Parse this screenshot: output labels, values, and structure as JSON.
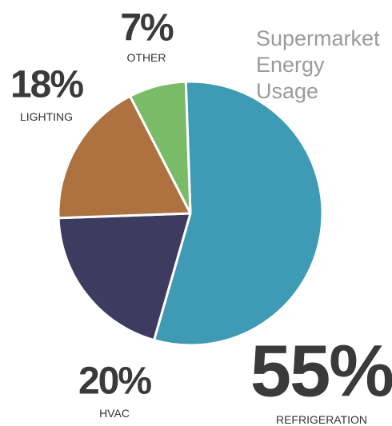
{
  "chart_data": {
    "type": "pie",
    "title": "Supermarket Energy Usage",
    "categories": [
      "REFRIGERATION",
      "HVAC",
      "LIGHTING",
      "OTHER"
    ],
    "values": [
      55,
      20,
      18,
      7
    ],
    "value_labels": [
      "55%",
      "20%",
      "18%",
      "7%"
    ],
    "colors": [
      "#3f9bb5",
      "#3d3b5f",
      "#ad7240",
      "#79bb66"
    ]
  }
}
